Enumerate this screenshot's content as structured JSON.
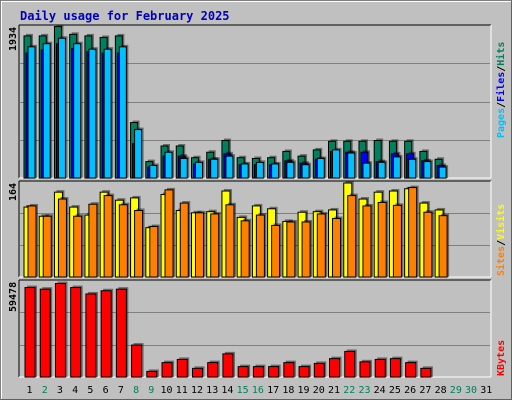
{
  "title": "Daily usage for February 2025",
  "colors": {
    "hits": "#00805c",
    "files": "#0000ff",
    "pages": "#00c0ff",
    "visits": "#ffff00",
    "sites": "#ff8000",
    "kbytes": "#ff0000",
    "plot_bg": "#c0c0c0",
    "day_weekday": "#000000",
    "day_weekend": "#00805c"
  },
  "legend": {
    "top": [
      "Pages",
      "/",
      "Files",
      "/",
      "Hits"
    ],
    "middle": [
      "Sites",
      "/",
      "Visits"
    ],
    "bottom": [
      "KBytes"
    ]
  },
  "chart_data": [
    {
      "type": "bar",
      "panel": "top",
      "ymax_label": "1934",
      "ylim": [
        0,
        1934
      ],
      "categories": [
        "1",
        "2",
        "3",
        "4",
        "5",
        "6",
        "7",
        "8",
        "9",
        "10",
        "11",
        "12",
        "13",
        "14",
        "15",
        "16",
        "17",
        "18",
        "19",
        "20",
        "21",
        "22",
        "23",
        "24",
        "25",
        "26",
        "27",
        "28",
        "29",
        "30",
        "31"
      ],
      "weekend": [
        false,
        true,
        false,
        false,
        false,
        false,
        false,
        true,
        true,
        false,
        false,
        false,
        false,
        false,
        true,
        true,
        false,
        false,
        false,
        false,
        false,
        true,
        true,
        false,
        false,
        false,
        false,
        false,
        true,
        true,
        false
      ],
      "series": [
        {
          "name": "Hits",
          "key": "hits",
          "values": [
            1820,
            1820,
            1940,
            1840,
            1820,
            1800,
            1820,
            710,
            210,
            410,
            410,
            260,
            330,
            480,
            260,
            250,
            260,
            340,
            280,
            360,
            470,
            470,
            470,
            480,
            470,
            470,
            340,
            240,
            0,
            0,
            0
          ]
        },
        {
          "name": "Files",
          "key": "files",
          "values": [
            1600,
            1640,
            1720,
            1660,
            1620,
            1600,
            1600,
            440,
            140,
            280,
            280,
            180,
            240,
            310,
            170,
            170,
            170,
            220,
            190,
            240,
            340,
            330,
            330,
            210,
            310,
            310,
            220,
            160,
            0,
            0,
            0
          ]
        },
        {
          "name": "Pages",
          "key": "pages",
          "values": [
            1680,
            1720,
            1790,
            1720,
            1650,
            1650,
            1680,
            620,
            160,
            330,
            250,
            200,
            240,
            280,
            180,
            200,
            180,
            200,
            170,
            250,
            360,
            320,
            190,
            200,
            270,
            240,
            210,
            140,
            0,
            0,
            0
          ]
        }
      ]
    },
    {
      "type": "bar",
      "panel": "middle",
      "ymax_label": "164",
      "ylim": [
        0,
        164
      ],
      "categories": [
        "1",
        "2",
        "3",
        "4",
        "5",
        "6",
        "7",
        "8",
        "9",
        "10",
        "11",
        "12",
        "13",
        "14",
        "15",
        "16",
        "17",
        "18",
        "19",
        "20",
        "21",
        "22",
        "23",
        "24",
        "25",
        "26",
        "27",
        "28",
        "29",
        "30",
        "31"
      ],
      "series": [
        {
          "name": "Visits",
          "key": "visits",
          "values": [
            122,
            106,
            148,
            122,
            108,
            148,
            134,
            138,
            86,
            144,
            116,
            112,
            114,
            150,
            104,
            124,
            119,
            97,
            113,
            114,
            117,
            164,
            136,
            148,
            150,
            154,
            129,
            117,
            0,
            0,
            0
          ]
        },
        {
          "name": "Sites",
          "key": "sites",
          "values": [
            124,
            106,
            136,
            106,
            127,
            142,
            126,
            116,
            88,
            152,
            129,
            112,
            110,
            126,
            98,
            108,
            90,
            96,
            96,
            110,
            102,
            142,
            124,
            130,
            125,
            156,
            113,
            107,
            0,
            0,
            0
          ]
        }
      ]
    },
    {
      "type": "bar",
      "panel": "bottom",
      "ymax_label": "59478",
      "ylim": [
        0,
        59478
      ],
      "categories": [
        "1",
        "2",
        "3",
        "4",
        "5",
        "6",
        "7",
        "8",
        "9",
        "10",
        "11",
        "12",
        "13",
        "14",
        "15",
        "16",
        "17",
        "18",
        "19",
        "20",
        "21",
        "22",
        "23",
        "24",
        "25",
        "26",
        "27",
        "28",
        "29",
        "30",
        "31"
      ],
      "series": [
        {
          "name": "KBytes",
          "key": "kbytes",
          "values": [
            56000,
            55000,
            58500,
            56000,
            52000,
            54000,
            55000,
            20000,
            3500,
            9000,
            11000,
            5400,
            9000,
            14500,
            6500,
            6500,
            6500,
            9000,
            6500,
            8500,
            11500,
            16000,
            9500,
            11000,
            11500,
            9000,
            5400,
            0,
            0,
            0,
            0
          ]
        }
      ]
    }
  ]
}
